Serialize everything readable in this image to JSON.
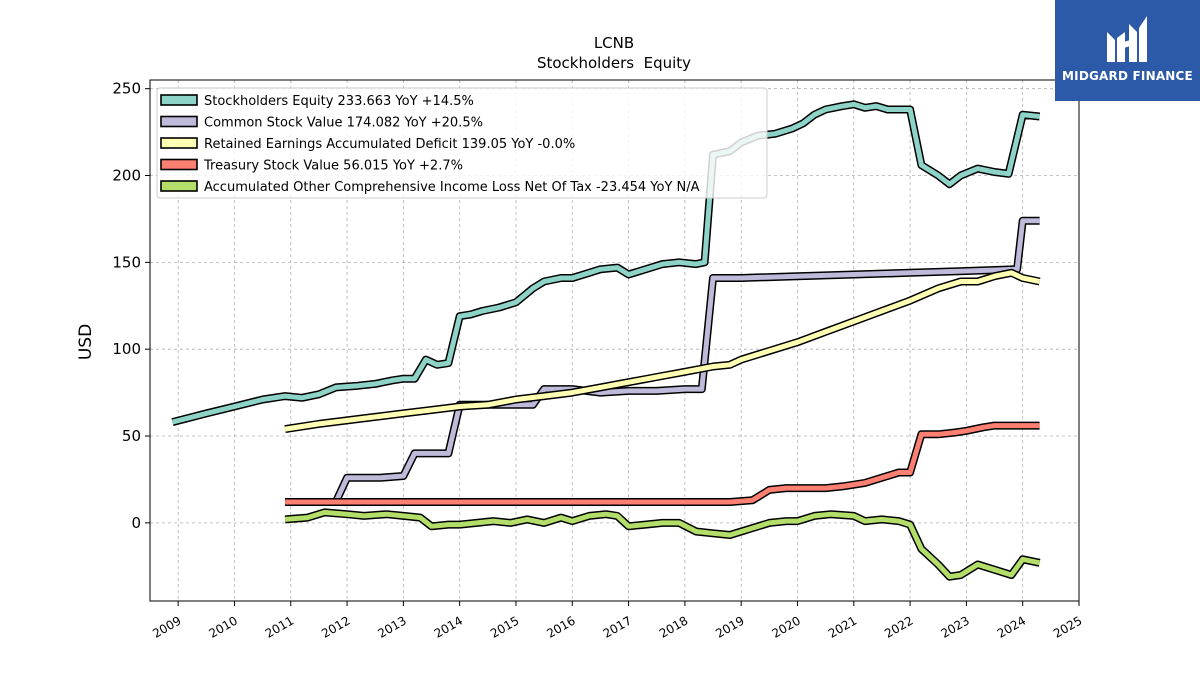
{
  "chart_data": {
    "type": "line",
    "title": "LCNB",
    "subtitle": "Stockholders  Equity",
    "xlabel": "",
    "ylabel": "USD",
    "xlim": [
      2008.5,
      2025.0
    ],
    "ylim": [
      -45,
      255
    ],
    "x_ticks": [
      "2009",
      "2010",
      "2011",
      "2012",
      "2013",
      "2014",
      "2015",
      "2016",
      "2017",
      "2018",
      "2019",
      "2020",
      "2021",
      "2022",
      "2023",
      "2024",
      "2025"
    ],
    "y_ticks": [
      0,
      50,
      100,
      150,
      200,
      250
    ],
    "grid": true,
    "legend_position": "upper-left",
    "series": [
      {
        "name": "Stockholders Equity  233.663 YoY +14.5%",
        "color": "#8dd3c7",
        "points": [
          [
            2008.9,
            58
          ],
          [
            2009.5,
            63
          ],
          [
            2010.0,
            67
          ],
          [
            2010.5,
            71
          ],
          [
            2010.9,
            73
          ],
          [
            2011.2,
            72
          ],
          [
            2011.5,
            74
          ],
          [
            2011.8,
            78
          ],
          [
            2012.2,
            79
          ],
          [
            2012.5,
            80
          ],
          [
            2012.8,
            82
          ],
          [
            2013.0,
            83
          ],
          [
            2013.2,
            83
          ],
          [
            2013.4,
            94
          ],
          [
            2013.6,
            91
          ],
          [
            2013.8,
            92
          ],
          [
            2014.0,
            119
          ],
          [
            2014.2,
            120
          ],
          [
            2014.4,
            122
          ],
          [
            2014.7,
            124
          ],
          [
            2015.0,
            127
          ],
          [
            2015.3,
            135
          ],
          [
            2015.5,
            139
          ],
          [
            2015.8,
            141
          ],
          [
            2016.0,
            141
          ],
          [
            2016.3,
            144
          ],
          [
            2016.5,
            146
          ],
          [
            2016.8,
            147
          ],
          [
            2017.0,
            143
          ],
          [
            2017.3,
            146
          ],
          [
            2017.6,
            149
          ],
          [
            2017.9,
            150
          ],
          [
            2018.2,
            149
          ],
          [
            2018.35,
            150
          ],
          [
            2018.5,
            212
          ],
          [
            2018.8,
            214
          ],
          [
            2019.0,
            219
          ],
          [
            2019.3,
            223
          ],
          [
            2019.6,
            224
          ],
          [
            2019.9,
            227
          ],
          [
            2020.1,
            230
          ],
          [
            2020.3,
            235
          ],
          [
            2020.5,
            238
          ],
          [
            2020.8,
            240
          ],
          [
            2021.0,
            241
          ],
          [
            2021.2,
            239
          ],
          [
            2021.4,
            240
          ],
          [
            2021.6,
            238
          ],
          [
            2021.9,
            238
          ],
          [
            2022.0,
            238
          ],
          [
            2022.2,
            206
          ],
          [
            2022.5,
            200
          ],
          [
            2022.7,
            195
          ],
          [
            2022.9,
            200
          ],
          [
            2023.2,
            204
          ],
          [
            2023.5,
            202
          ],
          [
            2023.75,
            201
          ],
          [
            2024.0,
            235
          ],
          [
            2024.3,
            234
          ]
        ]
      },
      {
        "name": "Common Stock Value  174.082 YoY +20.5%",
        "color": "#bebada",
        "points": [
          [
            2010.9,
            12
          ],
          [
            2011.8,
            12
          ],
          [
            2012.0,
            26
          ],
          [
            2012.3,
            26
          ],
          [
            2012.6,
            26
          ],
          [
            2013.0,
            27
          ],
          [
            2013.2,
            40
          ],
          [
            2013.5,
            40
          ],
          [
            2013.8,
            40
          ],
          [
            2014.0,
            68
          ],
          [
            2014.5,
            68
          ],
          [
            2015.0,
            68
          ],
          [
            2015.3,
            68
          ],
          [
            2015.5,
            77
          ],
          [
            2016.0,
            77
          ],
          [
            2016.5,
            75
          ],
          [
            2017.0,
            76
          ],
          [
            2017.5,
            76
          ],
          [
            2018.0,
            77
          ],
          [
            2018.3,
            77
          ],
          [
            2018.5,
            141
          ],
          [
            2019.0,
            141
          ],
          [
            2020.0,
            142
          ],
          [
            2021.0,
            143
          ],
          [
            2022.0,
            144
          ],
          [
            2023.0,
            145
          ],
          [
            2023.9,
            146
          ],
          [
            2024.0,
            174
          ],
          [
            2024.3,
            174
          ]
        ]
      },
      {
        "name": "Retained Earnings Accumulated Deficit  139.05 YoY -0.0%",
        "color": "#ffffb3",
        "points": [
          [
            2010.9,
            54
          ],
          [
            2011.5,
            57
          ],
          [
            2012.0,
            59
          ],
          [
            2012.5,
            61
          ],
          [
            2013.0,
            63
          ],
          [
            2013.5,
            65
          ],
          [
            2014.0,
            67
          ],
          [
            2014.5,
            68
          ],
          [
            2015.0,
            71
          ],
          [
            2015.5,
            73
          ],
          [
            2016.0,
            75
          ],
          [
            2016.5,
            78
          ],
          [
            2017.0,
            81
          ],
          [
            2017.5,
            84
          ],
          [
            2018.0,
            87
          ],
          [
            2018.5,
            90
          ],
          [
            2018.8,
            91
          ],
          [
            2019.0,
            94
          ],
          [
            2019.5,
            99
          ],
          [
            2020.0,
            104
          ],
          [
            2020.5,
            110
          ],
          [
            2021.0,
            116
          ],
          [
            2021.5,
            122
          ],
          [
            2022.0,
            128
          ],
          [
            2022.5,
            135
          ],
          [
            2022.9,
            139
          ],
          [
            2023.2,
            139
          ],
          [
            2023.5,
            142
          ],
          [
            2023.8,
            144
          ],
          [
            2024.0,
            141
          ],
          [
            2024.3,
            139
          ]
        ]
      },
      {
        "name": "Treasury Stock Value  56.015 YoY +2.7%",
        "color": "#fb8072",
        "points": [
          [
            2010.9,
            12
          ],
          [
            2012.0,
            12
          ],
          [
            2013.0,
            12
          ],
          [
            2014.0,
            12
          ],
          [
            2015.0,
            12
          ],
          [
            2016.0,
            12
          ],
          [
            2017.0,
            12
          ],
          [
            2018.0,
            12
          ],
          [
            2018.8,
            12
          ],
          [
            2019.2,
            13
          ],
          [
            2019.5,
            19
          ],
          [
            2019.8,
            20
          ],
          [
            2020.0,
            20
          ],
          [
            2020.5,
            20
          ],
          [
            2020.8,
            21
          ],
          [
            2021.2,
            23
          ],
          [
            2021.5,
            26
          ],
          [
            2021.8,
            29
          ],
          [
            2022.0,
            29
          ],
          [
            2022.2,
            51
          ],
          [
            2022.5,
            51
          ],
          [
            2022.8,
            52
          ],
          [
            2023.0,
            53
          ],
          [
            2023.3,
            55
          ],
          [
            2023.5,
            56
          ],
          [
            2024.0,
            56
          ],
          [
            2024.3,
            56
          ]
        ]
      },
      {
        "name": "Accumulated Other Comprehensive Income Loss Net Of Tax  -23.454 YoY N/A",
        "color": "#b3de69",
        "points": [
          [
            2010.9,
            2
          ],
          [
            2011.3,
            3
          ],
          [
            2011.6,
            6
          ],
          [
            2012.0,
            5
          ],
          [
            2012.3,
            4
          ],
          [
            2012.7,
            5
          ],
          [
            2013.0,
            4
          ],
          [
            2013.3,
            3
          ],
          [
            2013.5,
            -2
          ],
          [
            2013.8,
            -1
          ],
          [
            2014.0,
            -1
          ],
          [
            2014.3,
            0
          ],
          [
            2014.6,
            1
          ],
          [
            2014.9,
            0
          ],
          [
            2015.2,
            2
          ],
          [
            2015.5,
            0
          ],
          [
            2015.8,
            3
          ],
          [
            2016.0,
            1
          ],
          [
            2016.3,
            4
          ],
          [
            2016.6,
            5
          ],
          [
            2016.8,
            4
          ],
          [
            2017.0,
            -2
          ],
          [
            2017.3,
            -1
          ],
          [
            2017.6,
            0
          ],
          [
            2017.9,
            0
          ],
          [
            2018.2,
            -5
          ],
          [
            2018.5,
            -6
          ],
          [
            2018.8,
            -7
          ],
          [
            2019.2,
            -3
          ],
          [
            2019.5,
            0
          ],
          [
            2019.8,
            1
          ],
          [
            2020.0,
            1
          ],
          [
            2020.3,
            4
          ],
          [
            2020.6,
            5
          ],
          [
            2021.0,
            4
          ],
          [
            2021.2,
            1
          ],
          [
            2021.5,
            2
          ],
          [
            2021.8,
            1
          ],
          [
            2022.0,
            -1
          ],
          [
            2022.2,
            -15
          ],
          [
            2022.5,
            -24
          ],
          [
            2022.7,
            -31
          ],
          [
            2022.9,
            -30
          ],
          [
            2023.2,
            -24
          ],
          [
            2023.5,
            -27
          ],
          [
            2023.8,
            -30
          ],
          [
            2024.0,
            -21
          ],
          [
            2024.3,
            -23
          ]
        ]
      }
    ]
  },
  "logo": {
    "name": "MIDGARD FINANCE"
  }
}
